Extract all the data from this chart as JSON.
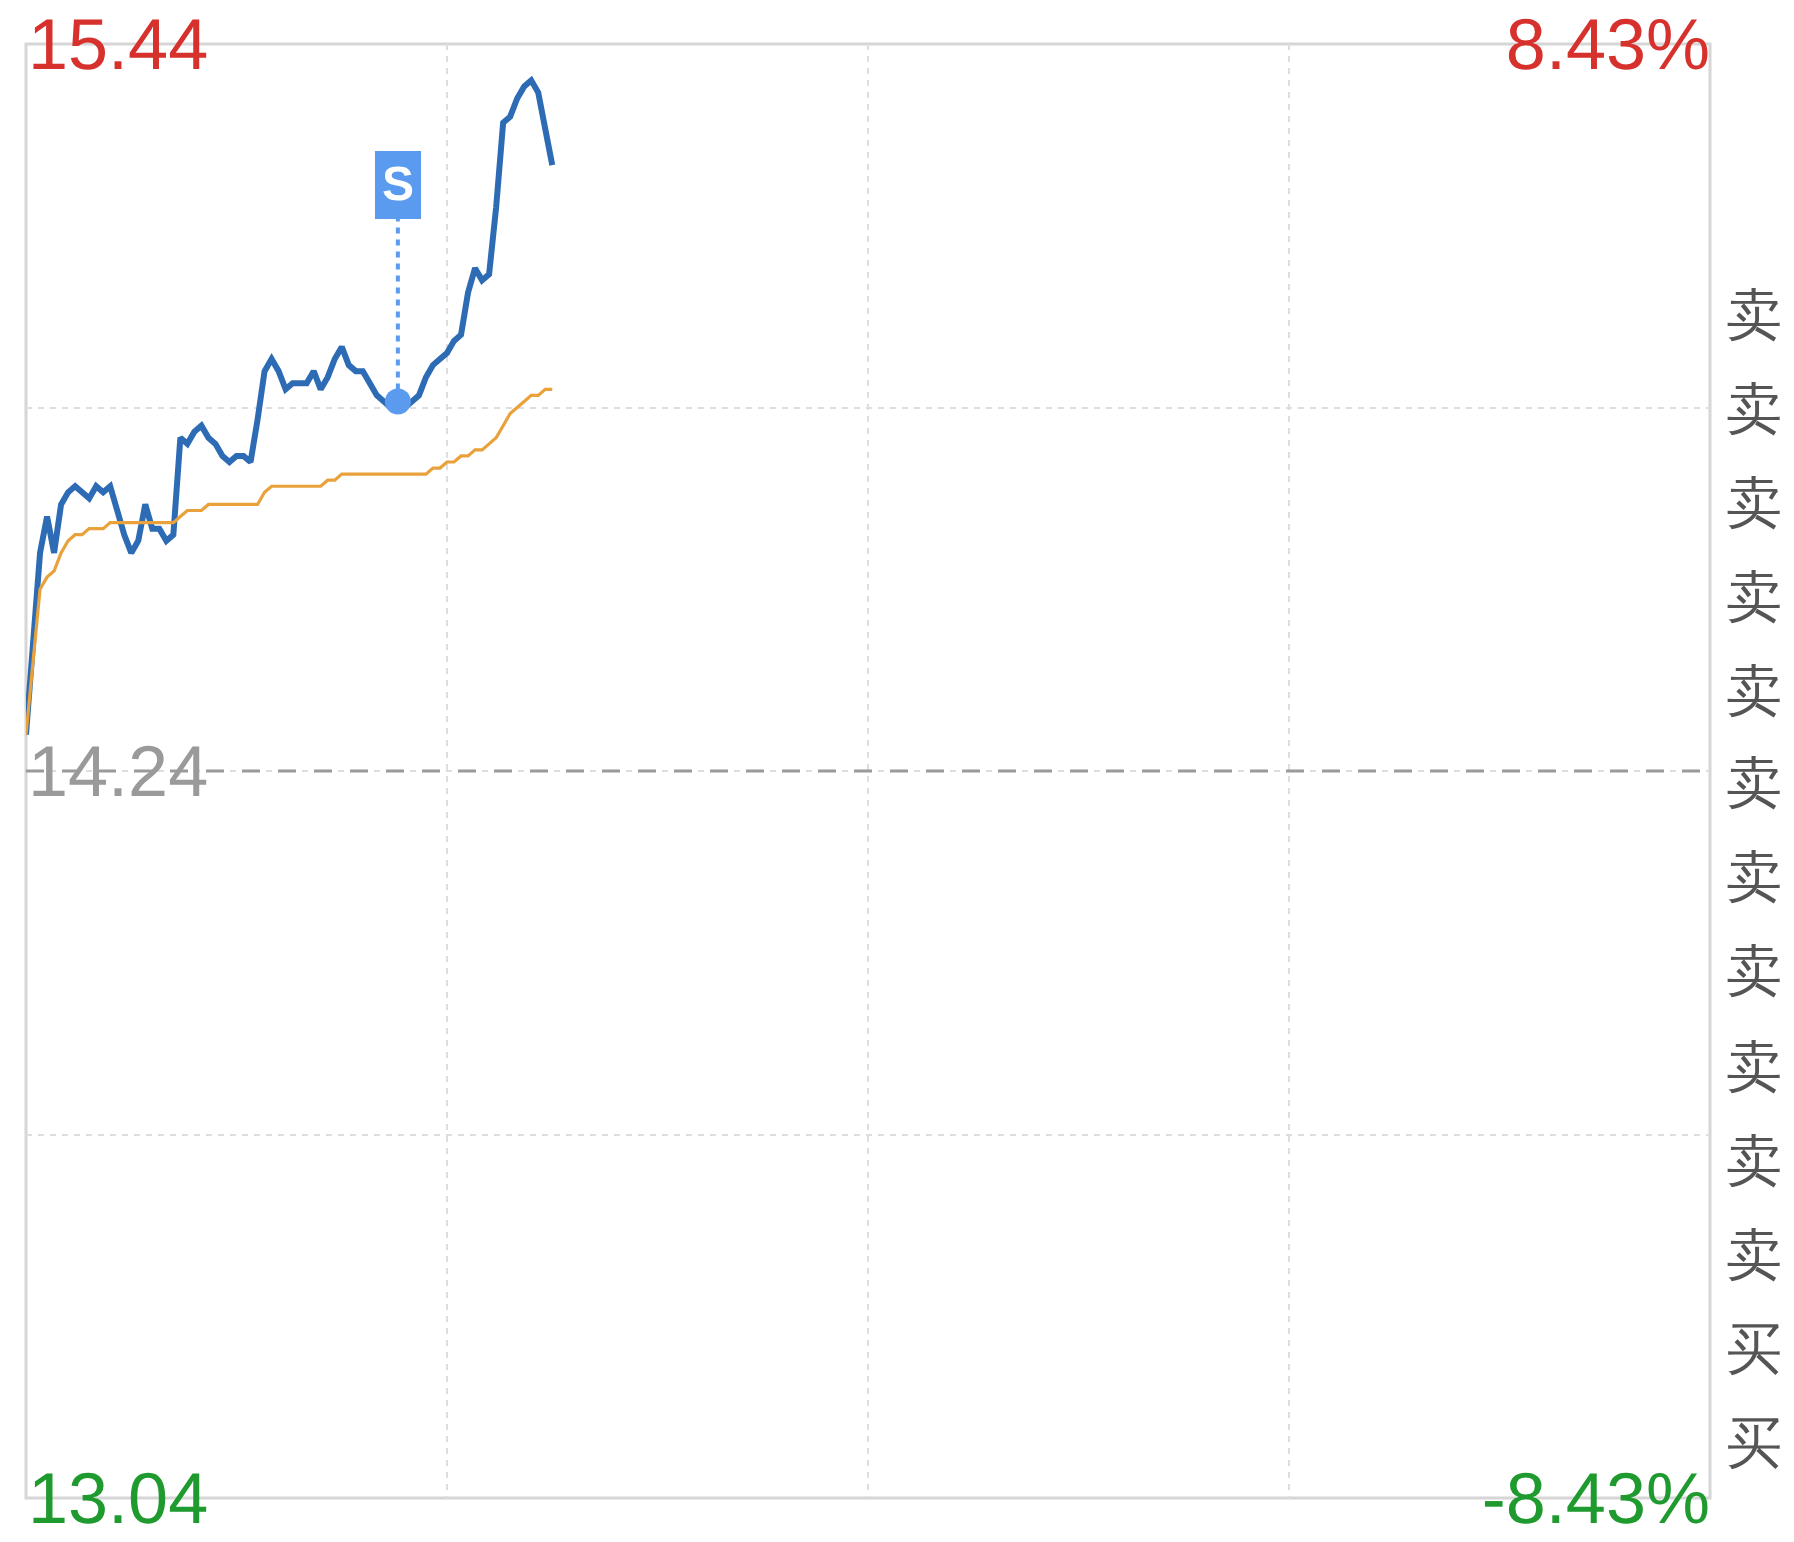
{
  "chart_data": {
    "type": "line",
    "categories": [
      null,
      null,
      null,
      null,
      null,
      null,
      null,
      null,
      null,
      null,
      null,
      null,
      null,
      null,
      null,
      null,
      null,
      null,
      null,
      null,
      null,
      null,
      null,
      null,
      null,
      null,
      null,
      null,
      null,
      null,
      null,
      null,
      null,
      null,
      null,
      null,
      null,
      null,
      null,
      null,
      null,
      null,
      null,
      null,
      null,
      null,
      null,
      null,
      null,
      null,
      null,
      null,
      null,
      null,
      null,
      null,
      null,
      null,
      null,
      null,
      null,
      null,
      null,
      null,
      null,
      null,
      null,
      null,
      null,
      null,
      null,
      null,
      null,
      null,
      null,
      null,
      null,
      null,
      null,
      null,
      null,
      null,
      null,
      null,
      null,
      null,
      null,
      null,
      null,
      null,
      null,
      null,
      null,
      null,
      null,
      null,
      null,
      null,
      null,
      null,
      null,
      null,
      null,
      null,
      null,
      null,
      null,
      null,
      null,
      null,
      null,
      null,
      null,
      null,
      null,
      null,
      null,
      null,
      null,
      null,
      null,
      null,
      null,
      null,
      null,
      null,
      null,
      null,
      null,
      null,
      null,
      null,
      null,
      null,
      null,
      null,
      null,
      null,
      null,
      null,
      null,
      null,
      null,
      null,
      null,
      null,
      null,
      null,
      null,
      null,
      null,
      null,
      null,
      null,
      null,
      null,
      null,
      null,
      null,
      null,
      null,
      null,
      null,
      null,
      null,
      null,
      null,
      null,
      null,
      null,
      null,
      null,
      null,
      null,
      null,
      null,
      null,
      null,
      null,
      null,
      null,
      null,
      null,
      null,
      null,
      null,
      null,
      null,
      null,
      null,
      null,
      null,
      null,
      null,
      null,
      null,
      null,
      null,
      null,
      null,
      null,
      null,
      null,
      null,
      null,
      null,
      null,
      null,
      null,
      null,
      null,
      null,
      null,
      null,
      null,
      null,
      null,
      null,
      null,
      null,
      null,
      null,
      null,
      null,
      null,
      null,
      null,
      null,
      null,
      null,
      null,
      null,
      null,
      null,
      null,
      null,
      null,
      null,
      null,
      null,
      null
    ],
    "series": [
      {
        "color": "#2d6cb5",
        "values": [
          14.3,
          14.45,
          14.6,
          14.66,
          14.6,
          14.68,
          14.7,
          14.71,
          14.7,
          14.69,
          14.71,
          14.7,
          14.71,
          14.67,
          14.63,
          14.6,
          14.62,
          14.68,
          14.64,
          14.64,
          14.62,
          14.63,
          14.79,
          14.78,
          14.8,
          14.81,
          14.79,
          14.78,
          14.76,
          14.75,
          14.76,
          14.76,
          14.75,
          14.82,
          14.9,
          14.92,
          14.9,
          14.87,
          14.88,
          14.88,
          14.88,
          14.9,
          14.87,
          14.89,
          14.92,
          14.94,
          14.91,
          14.9,
          14.9,
          14.88,
          14.86,
          14.85,
          14.84,
          14.85,
          14.84,
          14.85,
          14.86,
          14.89,
          14.91,
          14.92,
          14.93,
          14.95,
          14.96,
          15.03,
          15.07,
          15.05,
          15.06,
          15.17,
          15.31,
          15.32,
          15.35,
          15.37,
          15.38,
          15.36,
          15.3,
          15.24,
          null,
          null,
          null,
          null,
          null,
          null,
          null,
          null,
          null,
          null,
          null,
          null,
          null,
          null,
          null,
          null,
          null,
          null,
          null,
          null,
          null,
          null,
          null,
          null,
          null,
          null,
          null,
          null,
          null,
          null,
          null,
          null,
          null,
          null,
          null,
          null,
          null,
          null,
          null,
          null,
          null,
          null,
          null,
          null,
          null,
          null,
          null,
          null,
          null,
          null,
          null,
          null,
          null,
          null,
          null,
          null,
          null,
          null,
          null,
          null,
          null,
          null,
          null,
          null,
          null,
          null,
          null,
          null,
          null,
          null,
          null,
          null,
          null,
          null,
          null,
          null,
          null,
          null,
          null,
          null,
          null,
          null,
          null,
          null,
          null,
          null,
          null,
          null,
          null,
          null,
          null,
          null,
          null,
          null,
          null,
          null,
          null,
          null,
          null,
          null,
          null,
          null,
          null,
          null,
          null,
          null,
          null,
          null,
          null,
          null,
          null,
          null,
          null,
          null,
          null,
          null,
          null,
          null,
          null,
          null,
          null,
          null,
          null,
          null,
          null,
          null,
          null,
          null,
          null,
          null,
          null,
          null,
          null,
          null,
          null,
          null,
          null,
          null,
          null,
          null,
          null,
          null,
          null,
          null,
          null,
          null,
          null,
          null,
          null,
          null,
          null,
          null,
          null,
          null,
          null,
          null,
          null,
          null,
          null,
          null,
          null,
          null,
          null,
          null,
          null
        ]
      },
      {
        "color": "#e9a23b",
        "values": [
          14.3,
          14.42,
          14.54,
          14.56,
          14.57,
          14.6,
          14.62,
          14.63,
          14.63,
          14.64,
          14.64,
          14.64,
          14.65,
          14.65,
          14.65,
          14.65,
          14.65,
          14.65,
          14.65,
          14.65,
          14.65,
          14.65,
          14.66,
          14.67,
          14.67,
          14.67,
          14.68,
          14.68,
          14.68,
          14.68,
          14.68,
          14.68,
          14.68,
          14.68,
          14.7,
          14.71,
          14.71,
          14.71,
          14.71,
          14.71,
          14.71,
          14.71,
          14.71,
          14.72,
          14.72,
          14.73,
          14.73,
          14.73,
          14.73,
          14.73,
          14.73,
          14.73,
          14.73,
          14.73,
          14.73,
          14.73,
          14.73,
          14.73,
          14.74,
          14.74,
          14.75,
          14.75,
          14.76,
          14.76,
          14.77,
          14.77,
          14.78,
          14.79,
          14.81,
          14.83,
          14.84,
          14.85,
          14.86,
          14.86,
          14.87,
          14.87,
          null,
          null,
          null,
          null,
          null,
          null,
          null,
          null,
          null,
          null,
          null,
          null,
          null,
          null,
          null,
          null,
          null,
          null,
          null,
          null,
          null,
          null,
          null,
          null,
          null,
          null,
          null,
          null,
          null,
          null,
          null,
          null,
          null,
          null,
          null,
          null,
          null,
          null,
          null,
          null,
          null,
          null,
          null,
          null,
          null,
          null,
          null,
          null,
          null,
          null,
          null,
          null,
          null,
          null,
          null,
          null,
          null,
          null,
          null,
          null,
          null,
          null,
          null,
          null,
          null,
          null,
          null,
          null,
          null,
          null,
          null,
          null,
          null,
          null,
          null,
          null,
          null,
          null,
          null,
          null,
          null,
          null,
          null,
          null,
          null,
          null,
          null,
          null,
          null,
          null,
          null,
          null,
          null,
          null,
          null,
          null,
          null,
          null,
          null,
          null,
          null,
          null,
          null,
          null,
          null,
          null,
          null,
          null,
          null,
          null,
          null,
          null,
          null,
          null,
          null,
          null,
          null,
          null,
          null,
          null,
          null,
          null,
          null,
          null,
          null,
          null,
          null,
          null,
          null,
          null,
          null,
          null,
          null,
          null,
          null,
          null,
          null,
          null,
          null,
          null,
          null,
          null,
          null,
          null,
          null,
          null,
          null,
          null,
          null,
          null,
          null,
          null,
          null,
          null,
          null,
          null,
          null,
          null,
          null,
          null,
          null,
          null,
          null,
          null,
          null
        ]
      },
      {
        "name": "S",
        "type": "scatter",
        "marker": "circle",
        "color": "#5a9bf0",
        "values": [
          null,
          null,
          null,
          null,
          null,
          null,
          null,
          null,
          null,
          null,
          null,
          null,
          null,
          null,
          null,
          null,
          null,
          null,
          null,
          null,
          null,
          null,
          null,
          null,
          null,
          null,
          null,
          null,
          null,
          null,
          null,
          null,
          null,
          null,
          null,
          null,
          null,
          null,
          null,
          null,
          null,
          null,
          null,
          null,
          null,
          null,
          null,
          null,
          null,
          null,
          null,
          null,
          null,
          14.85,
          null,
          null,
          null,
          null,
          null,
          null,
          null,
          null,
          null,
          null,
          null,
          null,
          null,
          null,
          null,
          null,
          null,
          null,
          null,
          null,
          null,
          null,
          null,
          null,
          null,
          null,
          null,
          null,
          null,
          null,
          null,
          null,
          null,
          null,
          null,
          null,
          null,
          null,
          null,
          null,
          null,
          null,
          null,
          null,
          null,
          null,
          null,
          null,
          null,
          null,
          null,
          null,
          null,
          null,
          null,
          null,
          null,
          null,
          null,
          null,
          null,
          null,
          null,
          null,
          null,
          null,
          null,
          null,
          null,
          null,
          null,
          null,
          null,
          null,
          null,
          null,
          null,
          null,
          null,
          null,
          null,
          null,
          null,
          null,
          null,
          null,
          null,
          null,
          null,
          null,
          null,
          null,
          null,
          null,
          null,
          null,
          null,
          null,
          null,
          null,
          null,
          null,
          null,
          null,
          null,
          null,
          null,
          null,
          null,
          null,
          null,
          null,
          null,
          null,
          null,
          null,
          null,
          null,
          null,
          null,
          null,
          null,
          null,
          null,
          null,
          null,
          null,
          null,
          null,
          null,
          null,
          null,
          null,
          null,
          null,
          null,
          null,
          null,
          null,
          null,
          null,
          null,
          null,
          null,
          null,
          null,
          null,
          null,
          null,
          null,
          null,
          null,
          null,
          null,
          null,
          null,
          null,
          null,
          null,
          null,
          null,
          null,
          null,
          null,
          null,
          null,
          null,
          null,
          null,
          null,
          null,
          null,
          null,
          null,
          null,
          null,
          null,
          null,
          null,
          null,
          null,
          null,
          null,
          null,
          null,
          null,
          null
        ]
      }
    ],
    "ylim": [
      13.04,
      15.44
    ],
    "yticks": [
      15.44,
      {
        "value": 14.84,
        "label": null
      },
      14.24,
      {
        "value": 13.64,
        "label": null
      },
      13.04
    ],
    "y2lim": [
      -8.43,
      8.43
    ],
    "y2ticks": [
      {
        "value": 8.43,
        "label": "8.43%"
      },
      {
        "value": -8.43,
        "label": "-8.43%"
      }
    ],
    "ref_lines": [
      {
        "axis": "y",
        "value": 14.24,
        "color": "#9a9a9a",
        "line_style": "dashed"
      }
    ],
    "grid": true,
    "annotations": [
      "卖",
      "卖",
      "卖",
      "卖",
      "卖",
      "卖",
      "卖",
      "卖",
      "卖",
      "卖",
      "卖",
      "买",
      "买"
    ]
  }
}
